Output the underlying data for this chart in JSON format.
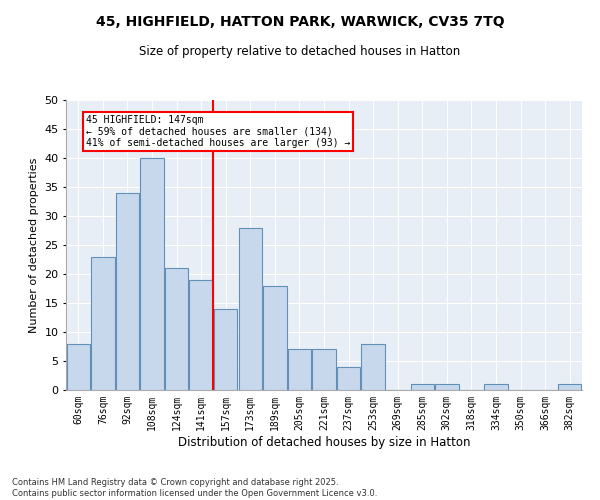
{
  "title_line1": "45, HIGHFIELD, HATTON PARK, WARWICK, CV35 7TQ",
  "title_line2": "Size of property relative to detached houses in Hatton",
  "xlabel": "Distribution of detached houses by size in Hatton",
  "ylabel": "Number of detached properties",
  "categories": [
    "60sqm",
    "76sqm",
    "92sqm",
    "108sqm",
    "124sqm",
    "141sqm",
    "157sqm",
    "173sqm",
    "189sqm",
    "205sqm",
    "221sqm",
    "237sqm",
    "253sqm",
    "269sqm",
    "285sqm",
    "302sqm",
    "318sqm",
    "334sqm",
    "350sqm",
    "366sqm",
    "382sqm"
  ],
  "values": [
    8,
    23,
    34,
    40,
    21,
    19,
    14,
    28,
    18,
    7,
    7,
    4,
    8,
    0,
    1,
    1,
    0,
    1,
    0,
    0,
    1
  ],
  "bar_color": "#c8d8ec",
  "bar_edge_color": "#6090b8",
  "red_line_index": 5,
  "annotation_line1": "45 HIGHFIELD: 147sqm",
  "annotation_line2": "← 59% of detached houses are smaller (134)",
  "annotation_line3": "41% of semi-detached houses are larger (93) →",
  "ylim": [
    0,
    50
  ],
  "yticks": [
    0,
    5,
    10,
    15,
    20,
    25,
    30,
    35,
    40,
    45,
    50
  ],
  "background_color": "#e8eef5",
  "grid_color": "#ffffff",
  "footnote_line1": "Contains HM Land Registry data © Crown copyright and database right 2025.",
  "footnote_line2": "Contains public sector information licensed under the Open Government Licence v3.0."
}
